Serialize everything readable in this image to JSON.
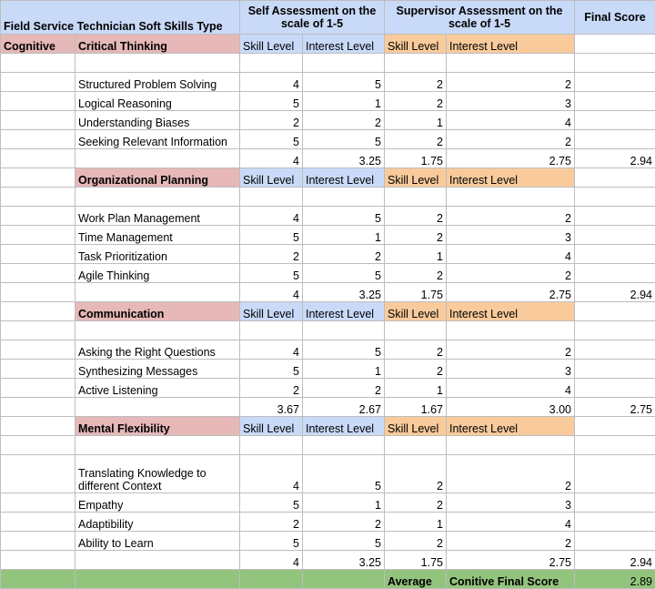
{
  "header": {
    "type_col": "Field Service Technician Soft Skills Type",
    "self_col": "Self Assessment on the scale of 1-5",
    "supervisor_col": "Supervisor Assessment on the scale of 1-5",
    "final_col": "Final Score"
  },
  "category": "Cognitive",
  "subheader": {
    "skill_level": "Skill Level",
    "interest_level": "Interest Level"
  },
  "sections": [
    {
      "title": "Critical Thinking",
      "rows": [
        {
          "name": "Structured Problem Solving",
          "v": [
            "4",
            "5",
            "2",
            "2"
          ]
        },
        {
          "name": "Logical Reasoning",
          "v": [
            "5",
            "1",
            "2",
            "3"
          ]
        },
        {
          "name": "Understanding Biases",
          "v": [
            "2",
            "2",
            "1",
            "4"
          ]
        },
        {
          "name": "Seeking Relevant Information",
          "v": [
            "5",
            "5",
            "2",
            "2"
          ]
        }
      ],
      "avg": [
        "4",
        "3.25",
        "1.75",
        "2.75"
      ],
      "final": "2.94"
    },
    {
      "title": "Organizational Planning",
      "rows": [
        {
          "name": "Work Plan Management",
          "v": [
            "4",
            "5",
            "2",
            "2"
          ]
        },
        {
          "name": "Time Management",
          "v": [
            "5",
            "1",
            "2",
            "3"
          ]
        },
        {
          "name": "Task Prioritization",
          "v": [
            "2",
            "2",
            "1",
            "4"
          ]
        },
        {
          "name": "Agile Thinking",
          "v": [
            "5",
            "5",
            "2",
            "2"
          ]
        }
      ],
      "avg": [
        "4",
        "3.25",
        "1.75",
        "2.75"
      ],
      "final": "2.94"
    },
    {
      "title": "Communication",
      "rows": [
        {
          "name": "Asking the Right Questions",
          "v": [
            "4",
            "5",
            "2",
            "2"
          ]
        },
        {
          "name": "Synthesizing Messages",
          "v": [
            "5",
            "1",
            "2",
            "3"
          ]
        },
        {
          "name": "Active Listening",
          "v": [
            "2",
            "2",
            "1",
            "4"
          ]
        }
      ],
      "avg": [
        "3.67",
        "2.67",
        "1.67",
        "3.00"
      ],
      "final": "2.75"
    },
    {
      "title": "Mental Flexibility",
      "rows": [
        {
          "name": "Translating Knowledge to different Context",
          "v": [
            "4",
            "5",
            "2",
            "2"
          ],
          "tall": true
        },
        {
          "name": "Empathy",
          "v": [
            "5",
            "1",
            "2",
            "3"
          ]
        },
        {
          "name": "Adaptibility",
          "v": [
            "2",
            "2",
            "1",
            "4"
          ]
        },
        {
          "name": "Ability to Learn",
          "v": [
            "5",
            "5",
            "2",
            "2"
          ]
        }
      ],
      "avg": [
        "4",
        "3.25",
        "1.75",
        "2.75"
      ],
      "final": "2.94"
    }
  ],
  "footer": {
    "average_label": "Average",
    "final_label": "Conitive Final Score",
    "final_value": "2.89"
  }
}
